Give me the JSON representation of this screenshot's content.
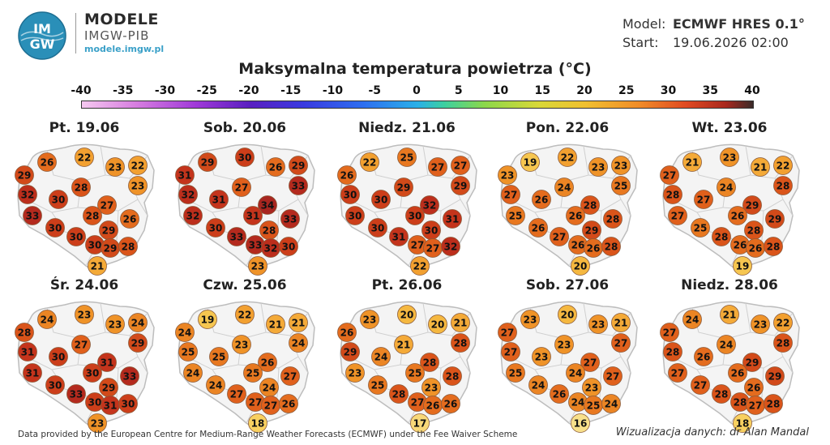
{
  "header": {
    "logo_text_top": "IM",
    "logo_text_bottom": "GW",
    "brand_title": "MODELE",
    "brand_subtitle": "IMGW-PIB",
    "brand_url": "modele.imgw.pl",
    "model_label": "Model:",
    "model_value": "ECMWF HRES 0.1°",
    "start_label": "Start:",
    "start_value": "19.06.2026 02:00"
  },
  "title": "Maksymalna temperatura powietrza (°C)",
  "scale": {
    "ticks": [
      "-40",
      "-35",
      "-30",
      "-25",
      "-20",
      "-15",
      "-10",
      "-5",
      "0",
      "5",
      "10",
      "15",
      "20",
      "25",
      "30",
      "35",
      "40"
    ]
  },
  "colors": {
    "t16": "#f8e08a",
    "t17": "#f8d878",
    "t18": "#f8d060",
    "t19": "#f6c650",
    "t20": "#f5b840",
    "t21": "#f4aa38",
    "t22": "#f2a030",
    "t23": "#ef9328",
    "t24": "#eb8524",
    "t25": "#e87820",
    "t26": "#e46c1e",
    "t27": "#e0601c",
    "t28": "#da541a",
    "t29": "#d24a1a",
    "t30": "#cc3e1a",
    "t31": "#c4341c",
    "t32": "#bc2e1c",
    "t33": "#b42a1e",
    "t34": "#a82620",
    "map_fill": "#f4f4f4",
    "map_border": "#bdbdbd"
  },
  "panels": [
    {
      "title": "Pt. 19.06",
      "values": [
        26,
        22,
        23,
        29,
        22,
        28,
        23,
        32,
        30,
        27,
        33,
        28,
        26,
        30,
        29,
        30,
        30,
        29,
        28,
        21
      ]
    },
    {
      "title": "Sob. 20.06",
      "values": [
        29,
        30,
        26,
        31,
        29,
        27,
        33,
        32,
        31,
        34,
        32,
        31,
        33,
        30,
        28,
        33,
        33,
        32,
        30,
        23
      ]
    },
    {
      "title": "Niedz. 21.06",
      "values": [
        22,
        25,
        27,
        26,
        27,
        29,
        29,
        30,
        30,
        32,
        30,
        30,
        31,
        30,
        30,
        31,
        27,
        27,
        32,
        22
      ]
    },
    {
      "title": "Pon. 22.06",
      "values": [
        19,
        22,
        23,
        23,
        23,
        24,
        25,
        27,
        26,
        28,
        25,
        26,
        28,
        26,
        29,
        27,
        26,
        26,
        28,
        20
      ]
    },
    {
      "title": "Wt. 23.06",
      "values": [
        21,
        23,
        21,
        27,
        22,
        24,
        28,
        28,
        27,
        29,
        27,
        26,
        29,
        25,
        28,
        28,
        26,
        26,
        28,
        19
      ]
    },
    {
      "title": "Śr. 24.06",
      "values": [
        24,
        23,
        23,
        28,
        24,
        27,
        29,
        31,
        30,
        31,
        31,
        30,
        33,
        30,
        29,
        33,
        30,
        31,
        30,
        23
      ]
    },
    {
      "title": "Czw. 25.06",
      "values": [
        19,
        22,
        21,
        24,
        21,
        23,
        24,
        25,
        25,
        26,
        24,
        25,
        27,
        24,
        24,
        27,
        27,
        27,
        26,
        18
      ]
    },
    {
      "title": "Pt. 26.06",
      "values": [
        23,
        20,
        20,
        26,
        21,
        21,
        28,
        29,
        24,
        28,
        23,
        25,
        28,
        25,
        23,
        28,
        27,
        26,
        26,
        17
      ]
    },
    {
      "title": "Sob. 27.06",
      "values": [
        23,
        20,
        23,
        27,
        21,
        23,
        27,
        27,
        23,
        27,
        25,
        24,
        27,
        24,
        23,
        26,
        24,
        25,
        24,
        16
      ]
    },
    {
      "title": "Niedz. 28.06",
      "values": [
        24,
        21,
        23,
        27,
        22,
        24,
        28,
        28,
        26,
        29,
        27,
        26,
        29,
        27,
        26,
        28,
        28,
        27,
        28,
        18
      ]
    }
  ],
  "footer": {
    "left": "Data provided by the European Centre for Medium-Range Weather Forecasts (ECMWF) under the Fee Waiver Scheme",
    "right": "Wizualizacja danych: dr Alan Mandal"
  }
}
